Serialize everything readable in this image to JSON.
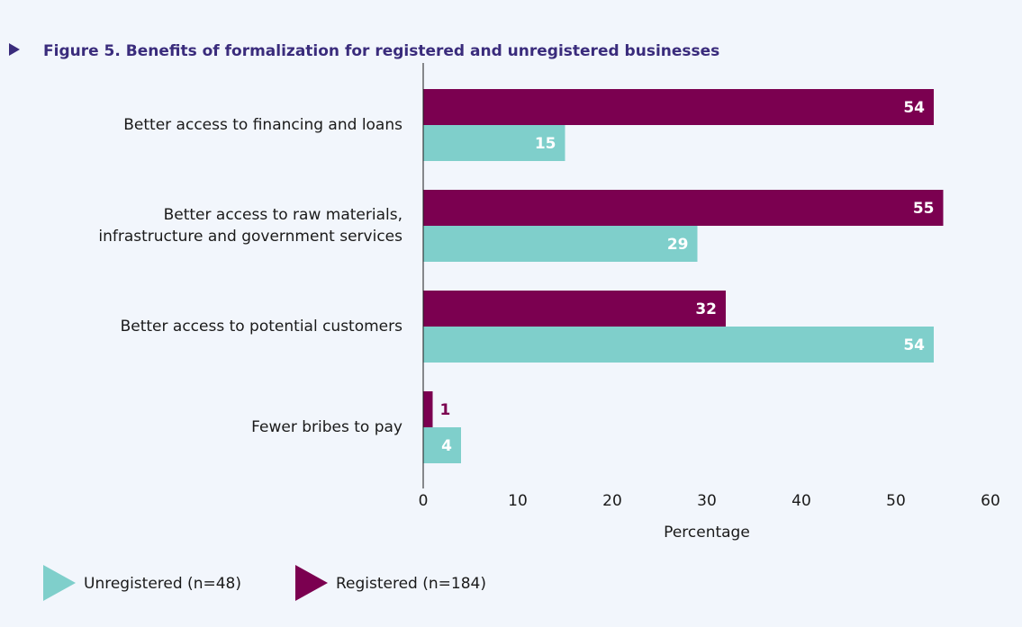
{
  "chart_data": {
    "type": "bar",
    "orientation": "horizontal",
    "title": "Figure 5. Benefits of formalization for registered and unregistered businesses",
    "categories": [
      "Better access to financing and loans",
      "Better access to raw materials,\ninfrastructure and government services",
      "Better access to potential customers",
      "Fewer bribes to pay"
    ],
    "series": [
      {
        "name": "Unregistered (n=48)",
        "color": "#7fcfcb",
        "values": [
          15,
          29,
          54,
          4
        ]
      },
      {
        "name": "Registered (n=184)",
        "color": "#7b0050",
        "values": [
          54,
          55,
          32,
          1
        ]
      }
    ],
    "xlabel": "Percentage",
    "xlim": [
      0,
      60
    ],
    "xticks": [
      0,
      10,
      20,
      30,
      40,
      50,
      60
    ],
    "grid": false,
    "legend": "bottom-left"
  }
}
